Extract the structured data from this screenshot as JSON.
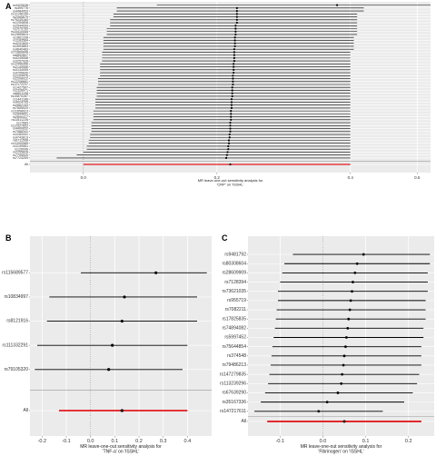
{
  "chart_data": [
    {
      "panel": "A",
      "type": "forest",
      "xlabel_lines": [
        "MR leave-one-out sensitivity analysis for",
        "'CRP' on 'ISSHL'"
      ],
      "xlim": [
        -0.08,
        0.52
      ],
      "xticks": [
        0.0,
        0.2,
        0.4,
        0.5
      ],
      "xtick_labels": [
        "0.0",
        "0.2",
        "0.4",
        "0.5"
      ],
      "ref_line": 0,
      "labels": [
        "rs4420638",
        "rs499776",
        "rs4484953",
        "rs12146190",
        "rs2065679",
        "rs79245160",
        "rs1254808",
        "rs2544009",
        "rs2976789",
        "rs10410055",
        "rs12855824",
        "rs1861338",
        "rs1183584",
        "rs4241600",
        "rs1694863",
        "rs4840483",
        "rs72889846",
        "rs6892807",
        "rs4245558",
        "rs3257928",
        "rs12456356",
        "rs2140556",
        "rs3134059",
        "rs4755830",
        "rs2204476",
        "rs2208022",
        "rs12208681",
        "rs12172237",
        "rs1427567",
        "rs2328971",
        "rs6601198",
        "rs10870287",
        "rs1441168",
        "rs4924705",
        "rs2662153",
        "rs7655520",
        "rs11658923",
        "rs2844651",
        "rs2890417",
        "rs11611226",
        "rs17683",
        "rs12527602",
        "rs4400652",
        "rs7588341",
        "rs1183441",
        "rs4743813",
        "rs6711598",
        "rs11000989",
        "rs1149561",
        "rs126096",
        "rs2255828",
        "rs7795520",
        "rs7724209",
        "All"
      ],
      "estimates": [
        0.38,
        0.23,
        0.23,
        0.23,
        0.23,
        0.23,
        0.23,
        0.228,
        0.228,
        0.228,
        0.228,
        0.227,
        0.227,
        0.227,
        0.227,
        0.226,
        0.226,
        0.226,
        0.226,
        0.226,
        0.225,
        0.225,
        0.225,
        0.225,
        0.224,
        0.224,
        0.224,
        0.224,
        0.223,
        0.223,
        0.223,
        0.223,
        0.222,
        0.222,
        0.222,
        0.222,
        0.221,
        0.221,
        0.221,
        0.221,
        0.22,
        0.22,
        0.22,
        0.22,
        0.219,
        0.219,
        0.218,
        0.218,
        0.217,
        0.217,
        0.216,
        0.215,
        0.214,
        0.22
      ],
      "lower": [
        0.11,
        0.05,
        0.05,
        0.045,
        0.045,
        0.04,
        0.04,
        0.04,
        0.035,
        0.035,
        0.035,
        0.03,
        0.03,
        0.03,
        0.03,
        0.03,
        0.028,
        0.028,
        0.028,
        0.028,
        0.025,
        0.025,
        0.025,
        0.025,
        0.025,
        0.022,
        0.022,
        0.022,
        0.02,
        0.02,
        0.02,
        0.02,
        0.018,
        0.018,
        0.018,
        0.018,
        0.015,
        0.015,
        0.015,
        0.015,
        0.012,
        0.012,
        0.012,
        0.012,
        0.01,
        0.01,
        0.008,
        0.008,
        0.005,
        0.005,
        0.0,
        -0.01,
        -0.04,
        0.0
      ],
      "upper": [
        0.65,
        0.42,
        0.42,
        0.41,
        0.41,
        0.41,
        0.41,
        0.41,
        0.41,
        0.41,
        0.41,
        0.405,
        0.405,
        0.405,
        0.405,
        0.405,
        0.4,
        0.4,
        0.4,
        0.4,
        0.4,
        0.4,
        0.4,
        0.4,
        0.4,
        0.4,
        0.4,
        0.4,
        0.4,
        0.4,
        0.4,
        0.4,
        0.4,
        0.4,
        0.4,
        0.4,
        0.4,
        0.4,
        0.4,
        0.4,
        0.4,
        0.4,
        0.4,
        0.4,
        0.4,
        0.4,
        0.4,
        0.4,
        0.4,
        0.4,
        0.4,
        0.4,
        0.4,
        0.4
      ]
    },
    {
      "panel": "B",
      "type": "forest",
      "xlabel_lines": [
        "MR leave-one-out sensitivity analysis for",
        "'TNF-a' on 'ISSHL'"
      ],
      "xlim": [
        -0.25,
        0.5
      ],
      "xticks": [
        -0.2,
        -0.1,
        0.0,
        0.1,
        0.2,
        0.3,
        0.4
      ],
      "xtick_labels": [
        "-0.2",
        "-0.1",
        "0.0",
        "0.1",
        "0.2",
        "0.3",
        "0.4"
      ],
      "ref_line": 0,
      "labels": [
        "rs115689577",
        "rs10834997",
        "rs8121916",
        "rs111332291",
        "rs79105320",
        "All"
      ],
      "estimates": [
        0.27,
        0.14,
        0.13,
        0.09,
        0.075,
        0.13
      ],
      "lower": [
        -0.04,
        -0.17,
        -0.18,
        -0.22,
        -0.23,
        -0.13
      ],
      "upper": [
        0.48,
        0.44,
        0.44,
        0.4,
        0.38,
        0.4
      ]
    },
    {
      "panel": "C",
      "type": "forest",
      "xlabel_lines": [
        "MR leave-one-out sensitivity analysis for",
        "'Fibrinogen' on 'ISSHL'"
      ],
      "xlim": [
        -0.175,
        0.26
      ],
      "xticks": [
        -0.1,
        0.0,
        0.1,
        0.2
      ],
      "xtick_labels": [
        "-0.1",
        "0.0",
        "0.1",
        "0.2"
      ],
      "ref_line": 0,
      "labels": [
        "rs9481792",
        "rs80308604",
        "rs28609909",
        "rs7128394",
        "rs73621035",
        "rs955719",
        "rs7082211",
        "rs17825835",
        "rs74894082",
        "rs5997452",
        "rs75644854",
        "rs374548",
        "rs79486213",
        "rs147279835",
        "rs113239296",
        "rs67639290",
        "rs35167336",
        "rs147217611",
        "All"
      ],
      "estimates": [
        0.095,
        0.08,
        0.075,
        0.07,
        0.068,
        0.065,
        0.063,
        0.06,
        0.058,
        0.055,
        0.053,
        0.05,
        0.048,
        0.045,
        0.043,
        0.035,
        0.01,
        -0.01,
        0.05
      ],
      "lower": [
        -0.07,
        -0.09,
        -0.095,
        -0.1,
        -0.105,
        -0.105,
        -0.108,
        -0.11,
        -0.112,
        -0.115,
        -0.118,
        -0.12,
        -0.122,
        -0.125,
        -0.128,
        -0.135,
        -0.145,
        -0.16,
        -0.13
      ],
      "upper": [
        0.25,
        0.25,
        0.245,
        0.245,
        0.245,
        0.24,
        0.24,
        0.24,
        0.235,
        0.235,
        0.23,
        0.23,
        0.23,
        0.225,
        0.22,
        0.21,
        0.19,
        0.14,
        0.23
      ]
    }
  ],
  "colors": {
    "panel_bg": "#ebebeb",
    "grid": "#ffffff",
    "line": "#000000",
    "point": "#000000",
    "overall": "#e41a1c",
    "ref_line": "#999999",
    "separator": "#999999"
  }
}
